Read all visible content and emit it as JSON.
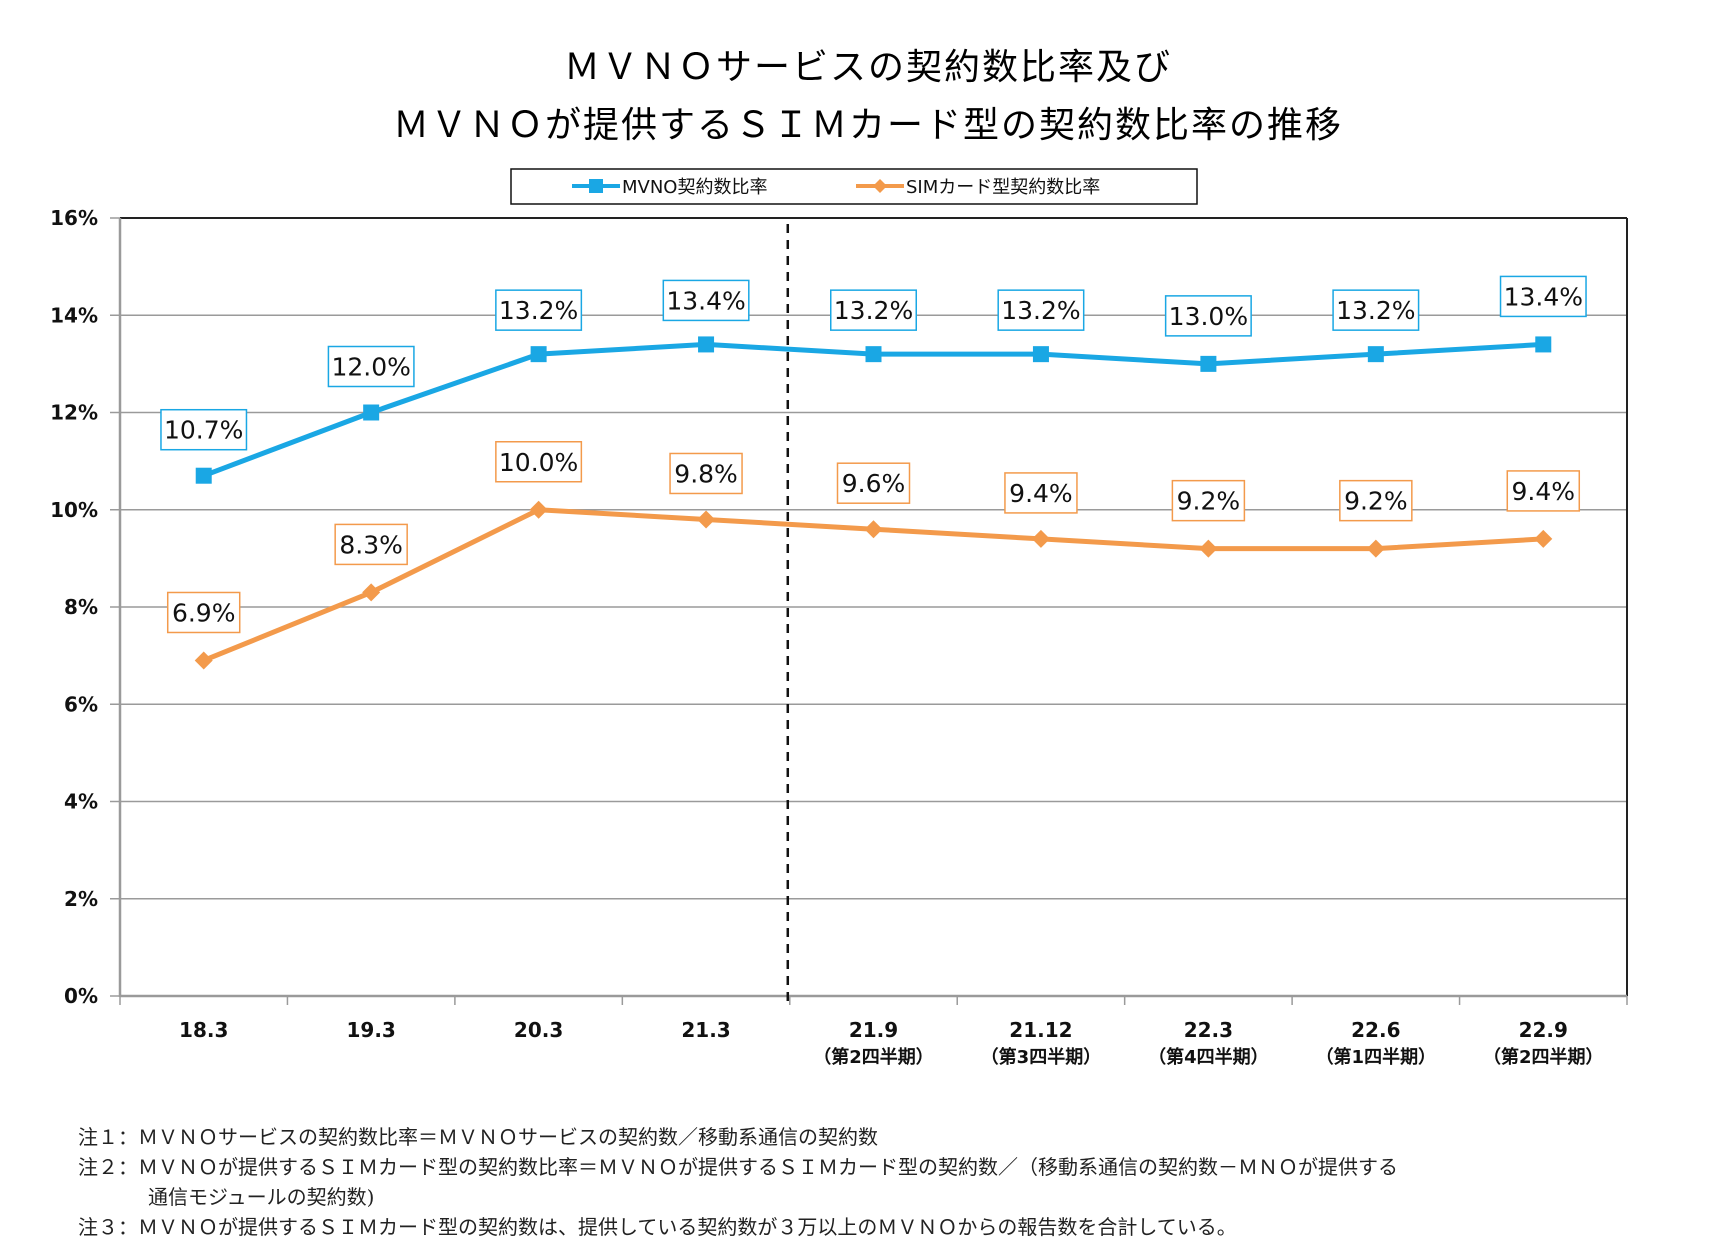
{
  "title_lines": [
    "ＭＶＮＯサービスの契約数比率及び",
    "ＭＶＮＯが提供するＳＩＭカード型の契約数比率の推移"
  ],
  "colors": {
    "mvno": "#1aa7e4",
    "sim": "#f39a4b",
    "grid": "#9a9a9a",
    "border": "#222222"
  },
  "chart_data": {
    "type": "line",
    "title": "ＭＶＮＯサービスの契約数比率及び ＭＶＮＯが提供するＳＩＭカード型の契約数比率の推移",
    "xlabel": "",
    "ylabel": "",
    "ylim": [
      0,
      16
    ],
    "yticks": [
      0,
      2,
      4,
      6,
      8,
      10,
      12,
      14,
      16
    ],
    "ytick_labels": [
      "0%",
      "2%",
      "4%",
      "6%",
      "8%",
      "10%",
      "12%",
      "14%",
      "16%"
    ],
    "grid": true,
    "legend_position": "top-center",
    "categories": [
      "18.3",
      "19.3",
      "20.3",
      "21.3",
      "21.9",
      "21.12",
      "22.3",
      "22.6",
      "22.9"
    ],
    "category_sublabels": [
      "",
      "",
      "",
      "",
      "（第2四半期）",
      "（第3四半期）",
      "（第4四半期）",
      "（第1四半期）",
      "（第2四半期）"
    ],
    "divider_after_category_index": 3,
    "series": [
      {
        "name": "MVNO契約数比率",
        "marker": "square",
        "color": "#1aa7e4",
        "values": [
          10.7,
          12.0,
          13.2,
          13.4,
          13.2,
          13.2,
          13.0,
          13.2,
          13.4
        ],
        "labels": [
          "10.7%",
          "12.0%",
          "13.2%",
          "13.4%",
          "13.2%",
          "13.2%",
          "13.0%",
          "13.2%",
          "13.4%"
        ]
      },
      {
        "name": "SIMカード型契約数比率",
        "marker": "diamond",
        "color": "#f39a4b",
        "values": [
          6.9,
          8.3,
          10.0,
          9.8,
          9.6,
          9.4,
          9.2,
          9.2,
          9.4
        ],
        "labels": [
          "6.9%",
          "8.3%",
          "10.0%",
          "9.8%",
          "9.6%",
          "9.4%",
          "9.2%",
          "9.2%",
          "9.4%"
        ]
      }
    ]
  },
  "notes": [
    "注１：ＭＶＮＯサービスの契約数比率＝ＭＶＮＯサービスの契約数／移動系通信の契約数",
    "注２：ＭＶＮＯが提供するＳＩＭカード型の契約数比率＝ＭＶＮＯが提供するＳＩＭカード型の契約数／（移動系通信の契約数－ＭＮＯが提供する",
    "通信モジュールの契約数)",
    "注３：ＭＶＮＯが提供するＳＩＭカード型の契約数は、提供している契約数が３万以上のＭＶＮＯからの報告数を合計している。"
  ]
}
